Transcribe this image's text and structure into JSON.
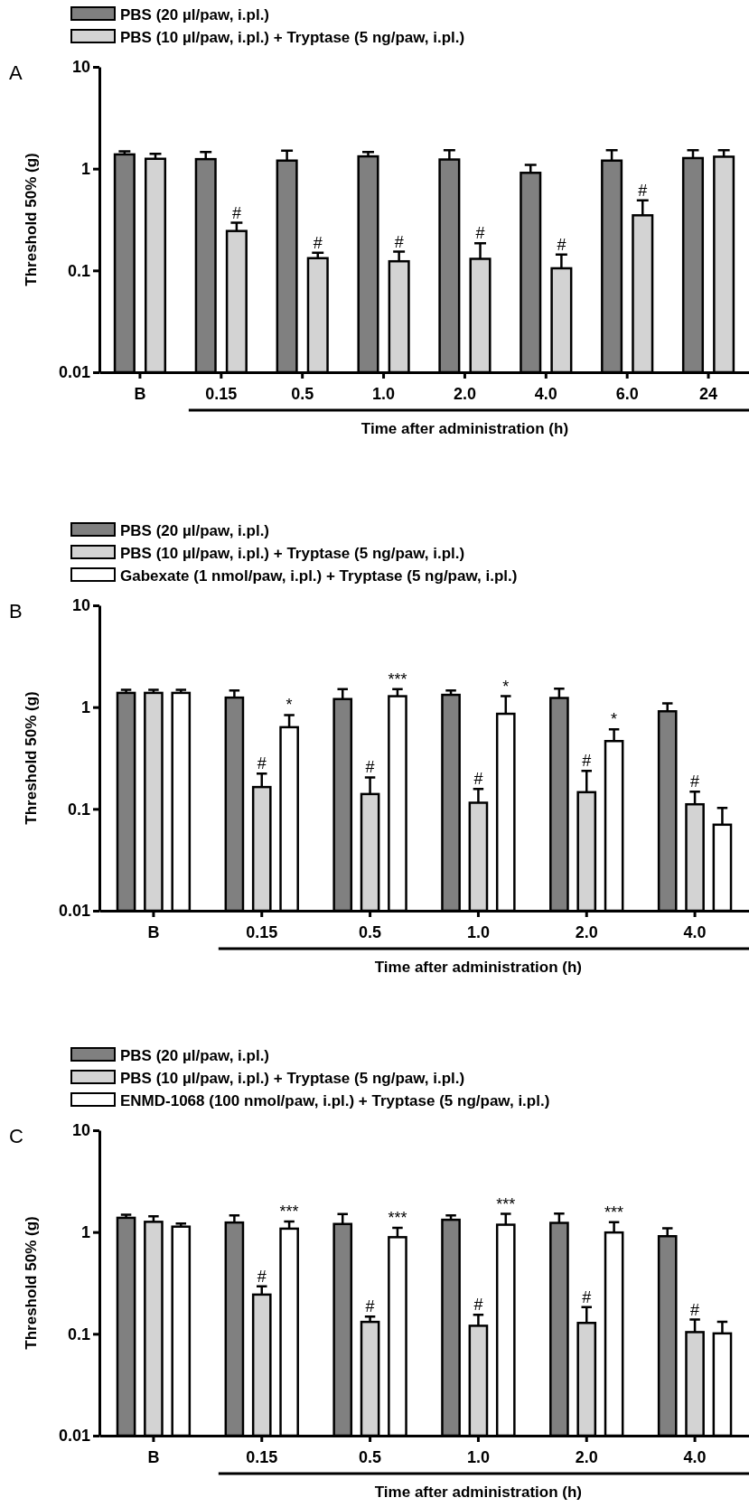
{
  "chart_data": [
    {
      "type": "bar",
      "title": "A",
      "ylabel": "Threshold 50% (g)",
      "xlabel": "Time after administration (h)",
      "categories": [
        "B",
        "0.15",
        "0.5",
        "1.0",
        "2.0",
        "4.0",
        "6.0",
        "24"
      ],
      "log": true,
      "ylim": [
        0.01,
        10
      ],
      "yticks": [
        0.01,
        0.1,
        1,
        10
      ],
      "legend": "top",
      "grid": false,
      "series": [
        {
          "name": "PBS (20 µl/paw, i.pl.)",
          "color": "#808080",
          "values": [
            1.38,
            1.24,
            1.2,
            1.32,
            1.23,
            0.91,
            1.2,
            1.27
          ],
          "errors": [
            0.1,
            0.22,
            0.3,
            0.14,
            0.29,
            0.18,
            0.32,
            0.25
          ]
        },
        {
          "name": "PBS (10 µl/paw, i.pl.) + Tryptase (5 ng/paw, i.pl.)",
          "color": "#d3d3d3",
          "values": [
            1.25,
            0.244,
            0.132,
            0.123,
            0.13,
            0.105,
            0.348,
            1.31
          ],
          "errors": [
            0.15,
            0.05,
            0.017,
            0.03,
            0.055,
            0.038,
            0.14,
            0.21
          ],
          "value_labels": [
            null,
            "#",
            "#",
            "#",
            "#",
            "#",
            "#",
            null
          ]
        }
      ]
    },
    {
      "type": "bar",
      "title": "B",
      "ylabel": "Threshold 50% (g)",
      "xlabel": "Time after administration (h)",
      "categories": [
        "B",
        "0.15",
        "0.5",
        "1.0",
        "2.0",
        "4.0"
      ],
      "log": true,
      "ylim": [
        0.01,
        10
      ],
      "yticks": [
        0.01,
        0.1,
        1,
        10
      ],
      "legend": "top",
      "grid": false,
      "series": [
        {
          "name": "PBS (20 µl/paw, i.pl.)",
          "color": "#808080",
          "values": [
            1.38,
            1.24,
            1.2,
            1.32,
            1.23,
            0.91
          ],
          "errors": [
            0.1,
            0.22,
            0.3,
            0.14,
            0.29,
            0.18
          ]
        },
        {
          "name": "PBS (10 µl/paw, i.pl.) + Tryptase (5 ng/paw, i.pl.)",
          "color": "#d3d3d3",
          "values": [
            1.38,
            0.164,
            0.14,
            0.115,
            0.146,
            0.111
          ],
          "errors": [
            0.1,
            0.058,
            0.064,
            0.042,
            0.09,
            0.037
          ],
          "value_labels": [
            null,
            "#",
            "#",
            "#",
            "#",
            "#"
          ]
        },
        {
          "name": "Gabexate (1 nmol/paw, i.pl.) + Tryptase (5 ng/paw, i.pl.)",
          "color": "#ffffff",
          "values": [
            1.38,
            0.635,
            1.28,
            0.86,
            0.464,
            0.07
          ],
          "errors": [
            0.1,
            0.2,
            0.22,
            0.42,
            0.14,
            0.032
          ],
          "value_labels": [
            null,
            "*",
            "***",
            "*",
            "*",
            null
          ]
        }
      ]
    },
    {
      "type": "bar",
      "title": "C",
      "ylabel": "Threshold 50% (g)",
      "xlabel": "Time after administration (h)",
      "categories": [
        "B",
        "0.15",
        "0.5",
        "1.0",
        "2.0",
        "4.0"
      ],
      "log": true,
      "ylim": [
        0.01,
        10
      ],
      "yticks": [
        0.01,
        0.1,
        1,
        10
      ],
      "legend": "top",
      "grid": false,
      "series": [
        {
          "name": "PBS (20 µl/paw, i.pl.)",
          "color": "#808080",
          "values": [
            1.38,
            1.24,
            1.2,
            1.32,
            1.23,
            0.91
          ],
          "errors": [
            0.1,
            0.22,
            0.3,
            0.14,
            0.29,
            0.18
          ]
        },
        {
          "name": "PBS (10 µl/paw, i.pl.) + Tryptase (5 ng/paw, i.pl.)",
          "color": "#d3d3d3",
          "values": [
            1.26,
            0.243,
            0.131,
            0.12,
            0.128,
            0.104
          ],
          "errors": [
            0.17,
            0.05,
            0.017,
            0.034,
            0.055,
            0.034
          ],
          "value_labels": [
            null,
            "#",
            "#",
            "#",
            "#",
            "#"
          ]
        },
        {
          "name": "ENMD-1068 (100 nmol/paw, i.pl.) + Tryptase (5 ng/paw, i.pl.)",
          "color": "#ffffff",
          "values": [
            1.13,
            1.08,
            0.89,
            1.18,
            0.99,
            0.101
          ],
          "errors": [
            0.08,
            0.19,
            0.21,
            0.33,
            0.26,
            0.03
          ],
          "value_labels": [
            null,
            "***",
            "***",
            "***",
            "***",
            null
          ]
        }
      ]
    }
  ]
}
